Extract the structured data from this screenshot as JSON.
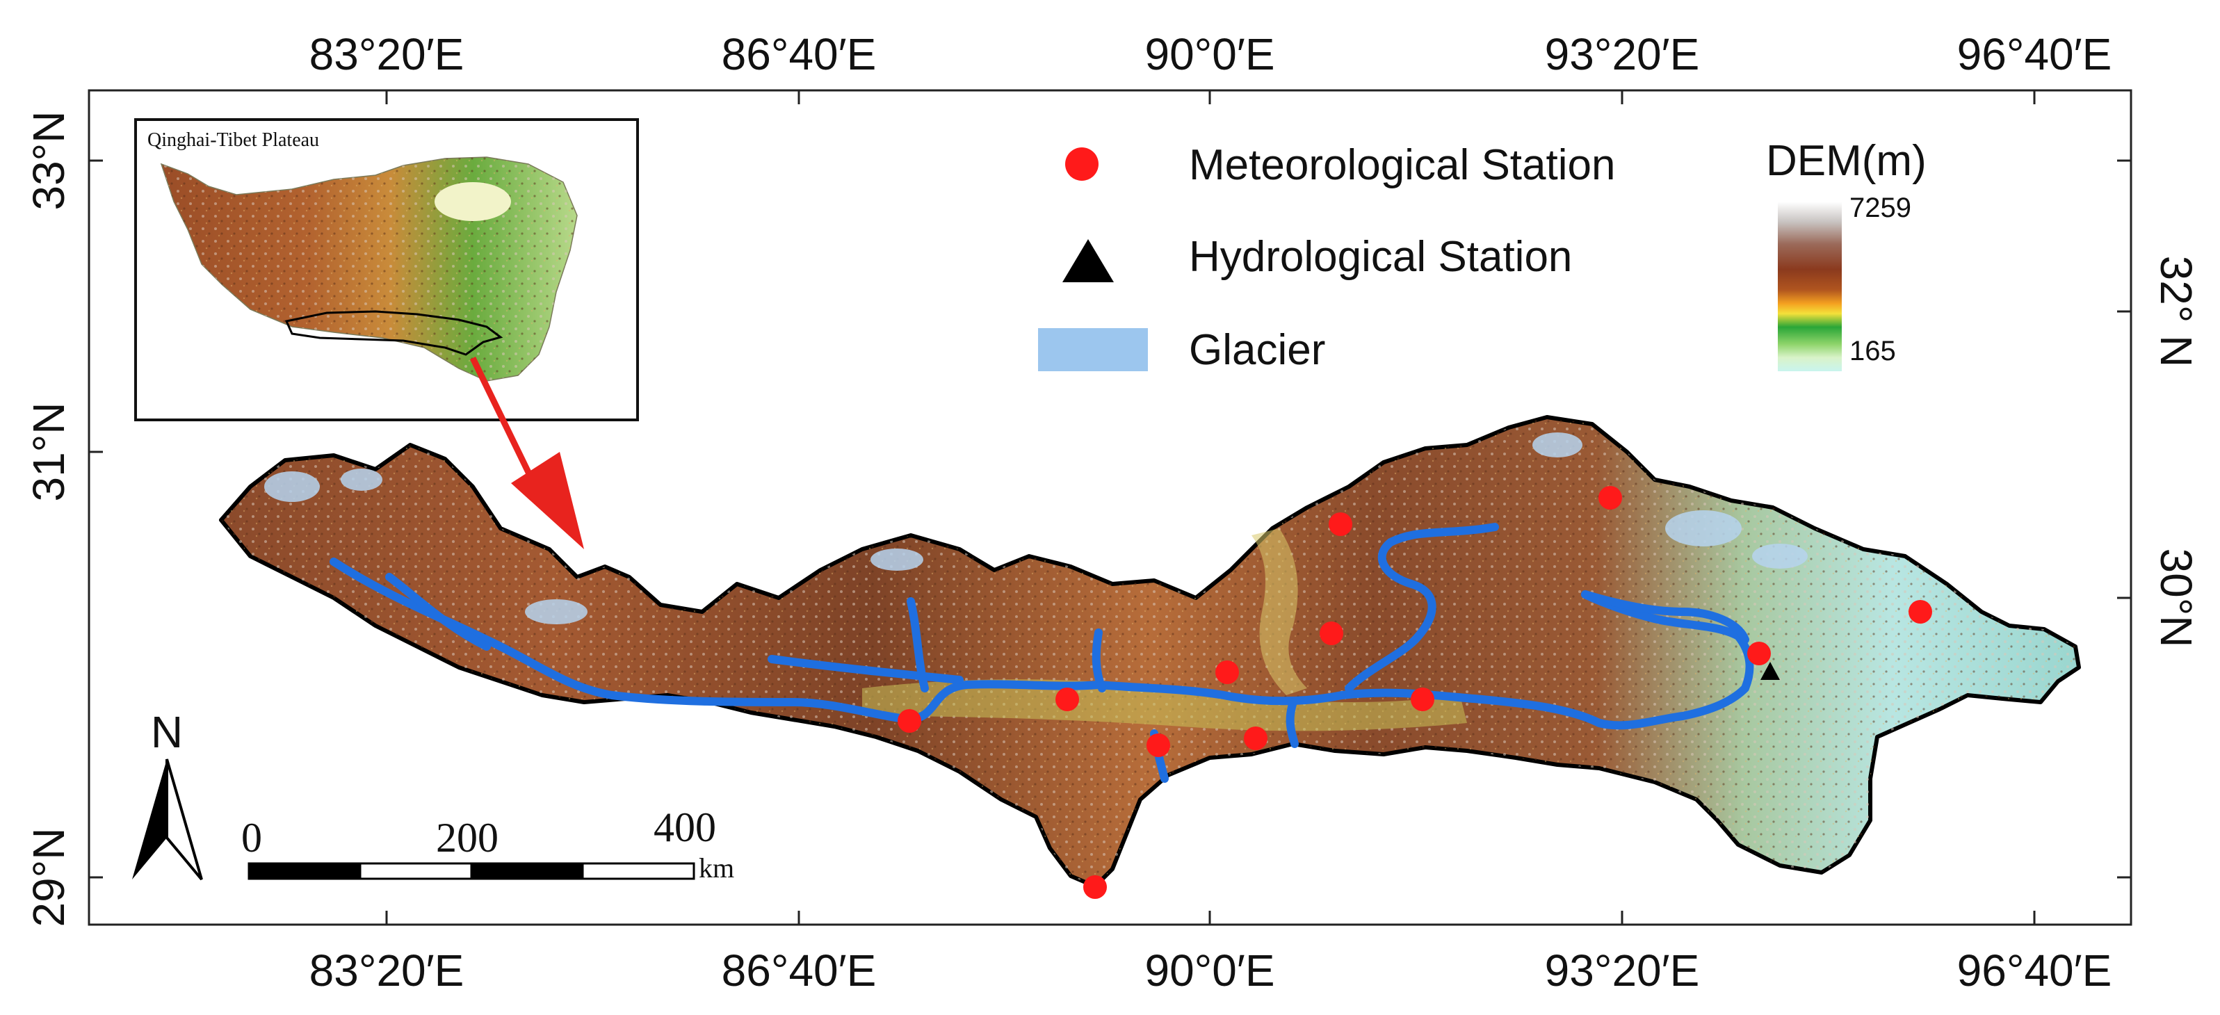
{
  "lon_ticks": [
    "83°20′E",
    "86°40′E",
    "90°0′E",
    "93°20′E",
    "96°40′E"
  ],
  "lat_ticks_left": [
    "33°N",
    "31°N",
    "29°N"
  ],
  "lat_ticks_right": [
    "32° N",
    "30°N"
  ],
  "inset": {
    "title": "Qinghai-Tibet Plateau"
  },
  "legend": {
    "met_station": "Meteorological Station",
    "hydro_station": "Hydrological Station",
    "glacier": "Glacier"
  },
  "dem": {
    "title": "DEM(m)",
    "max": "7259",
    "min": "165"
  },
  "scale": {
    "labels": [
      "0",
      "200",
      "400"
    ],
    "unit": "km"
  },
  "north": "N",
  "colors": {
    "met_station": "#ff1a1a",
    "hydro_station": "#000000",
    "glacier": "#9cc6ee",
    "river": "#1f6fe0",
    "arrow": "#e8231e"
  }
}
